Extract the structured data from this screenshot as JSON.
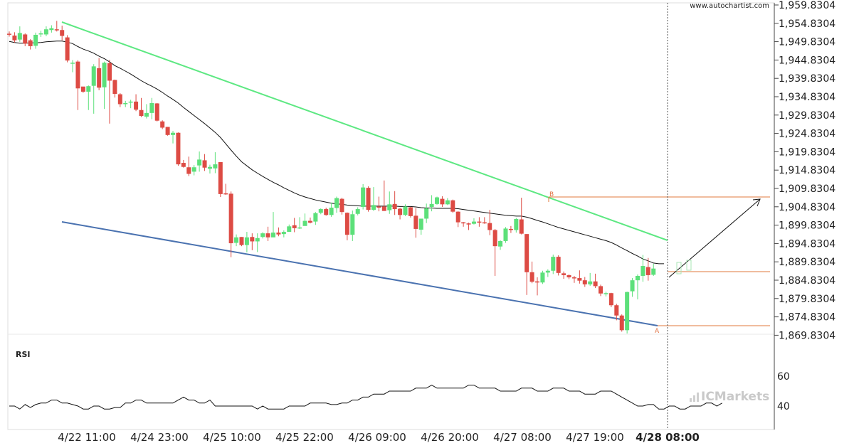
{
  "watermark": "www.autochartist.com",
  "brand": "ICMarkets",
  "rsi_label": "RSI",
  "chart_data": {
    "type": "candlestick",
    "y_ticks": [
      "1,959.8304",
      "1,954.8304",
      "1,949.8304",
      "1,944.8304",
      "1,939.8304",
      "1,934.8304",
      "1,929.8304",
      "1,924.8304",
      "1,919.8304",
      "1,914.8304",
      "1,909.8304",
      "1,904.8304",
      "1,899.8304",
      "1,894.8304",
      "1,889.8304",
      "1,884.8304",
      "1,879.8304",
      "1,874.8304",
      "1,869.8304"
    ],
    "x_ticks": [
      "4/22 11:00",
      "4/24 23:00",
      "4/25 10:00",
      "4/25 22:00",
      "4/26 09:00",
      "4/26 20:00",
      "4/27 08:00",
      "4/27 19:00",
      "4/28 08:00"
    ],
    "x_tick_highlight": "4/28 08:00",
    "ylim": [
      1868.0,
      1960.5
    ],
    "rsi": {
      "ticks": [
        "60",
        "40"
      ],
      "values": [
        40,
        40,
        38,
        41,
        39,
        41,
        42,
        42,
        44,
        44,
        42,
        42,
        41,
        40,
        38,
        38,
        40,
        40,
        38,
        38,
        39,
        39,
        42,
        42,
        44,
        44,
        42,
        42,
        42,
        42,
        42,
        42,
        44,
        46,
        44,
        44,
        42,
        42,
        44,
        40,
        40,
        40,
        40,
        40,
        40,
        40,
        40,
        38,
        40,
        38,
        38,
        38,
        38,
        40,
        40,
        40,
        40,
        42,
        42,
        42,
        42,
        41,
        41,
        42,
        42,
        44,
        44,
        46,
        46,
        48,
        48,
        48,
        50,
        50,
        50,
        50,
        50,
        52,
        52,
        52,
        54,
        52,
        52,
        52,
        52,
        52,
        52,
        54,
        54,
        52,
        52,
        52,
        52,
        50,
        50,
        50,
        50,
        52,
        52,
        52,
        50,
        50,
        50,
        52,
        52,
        52,
        50,
        50,
        50,
        48,
        48,
        48,
        50,
        50,
        50,
        48,
        46,
        44,
        42,
        40,
        40,
        41,
        41,
        38,
        38,
        40,
        40,
        38,
        38,
        40,
        40,
        40,
        42,
        42,
        40,
        42
      ]
    },
    "candles": [
      [
        1952.0,
        1951.8,
        1952.6,
        1951.2
      ],
      [
        1951.5,
        1950.2,
        1952.4,
        1949.6
      ],
      [
        1950.4,
        1952.2,
        1954.0,
        1949.8
      ],
      [
        1951.8,
        1949.3,
        1952.1,
        1948.6
      ],
      [
        1950.2,
        1948.6,
        1950.5,
        1947.7
      ],
      [
        1948.7,
        1951.7,
        1952.3,
        1947.9
      ],
      [
        1951.8,
        1952.1,
        1952.8,
        1951.1
      ],
      [
        1951.8,
        1953.2,
        1954.0,
        1951.3
      ],
      [
        1953.0,
        1953.5,
        1954.3,
        1952.3
      ],
      [
        1953.2,
        1953.1,
        1955.5,
        1952.6
      ],
      [
        1953.0,
        1951.4,
        1954.2,
        1950.2
      ],
      [
        1951.0,
        1944.7,
        1951.6,
        1944.2
      ],
      [
        1944.0,
        1944.1,
        1944.8,
        1941.5
      ],
      [
        1944.4,
        1937.1,
        1944.8,
        1931.2
      ],
      [
        1937.6,
        1936.2,
        1936.8,
        1935.9
      ],
      [
        1936.2,
        1937.7,
        1937.9,
        1931.2
      ],
      [
        1937.8,
        1943.1,
        1943.7,
        1930.2
      ],
      [
        1942.6,
        1937.3,
        1945.4,
        1936.6
      ],
      [
        1937.4,
        1944.1,
        1944.4,
        1931.5
      ],
      [
        1944.0,
        1939.2,
        1944.9,
        1927.5
      ],
      [
        1939.4,
        1935.6,
        1939.5,
        1934.6
      ],
      [
        1935.5,
        1932.8,
        1935.8,
        1932.0
      ],
      [
        1932.8,
        1933.1,
        1933.7,
        1932.0
      ],
      [
        1933.3,
        1933.5,
        1934.0,
        1931.7
      ],
      [
        1933.5,
        1931.3,
        1935.5,
        1930.9
      ],
      [
        1931.2,
        1929.6,
        1934.5,
        1929.3
      ],
      [
        1929.4,
        1930.4,
        1932.8,
        1928.9
      ],
      [
        1930.4,
        1933.1,
        1934.5,
        1928.7
      ],
      [
        1933.0,
        1928.3,
        1933.1,
        1928.1
      ],
      [
        1928.1,
        1926.4,
        1928.4,
        1926.0
      ],
      [
        1926.6,
        1924.4,
        1926.6,
        1924.2
      ],
      [
        1924.4,
        1925.0,
        1925.5,
        1922.1
      ],
      [
        1925.0,
        1916.4,
        1925.1,
        1916.0
      ],
      [
        1916.8,
        1915.7,
        1917.6,
        1915.5
      ],
      [
        1915.6,
        1913.8,
        1918.5,
        1913.2
      ],
      [
        1914.4,
        1915.6,
        1916.2,
        1913.4
      ],
      [
        1916.1,
        1917.7,
        1919.9,
        1914.4
      ],
      [
        1917.5,
        1915.5,
        1919.2,
        1914.6
      ],
      [
        1915.2,
        1915.7,
        1916.3,
        1913.9
      ],
      [
        1915.3,
        1916.4,
        1919.7,
        1914.0
      ],
      [
        1917.0,
        1908.3,
        1917.0,
        1907.5
      ],
      [
        1908.5,
        1908.4,
        1911.1,
        1908.1
      ],
      [
        1908.4,
        1894.9,
        1909.0,
        1891.1
      ],
      [
        1895.0,
        1896.5,
        1897.3,
        1894.1
      ],
      [
        1896.6,
        1894.4,
        1896.6,
        1894.1
      ],
      [
        1894.4,
        1896.5,
        1898.0,
        1892.4
      ],
      [
        1896.6,
        1895.4,
        1897.6,
        1893.0
      ],
      [
        1895.4,
        1896.3,
        1897.6,
        1892.5
      ],
      [
        1896.6,
        1897.6,
        1897.9,
        1896.2
      ],
      [
        1897.6,
        1896.5,
        1899.4,
        1895.5
      ],
      [
        1896.5,
        1897.8,
        1903.4,
        1897.3
      ],
      [
        1897.8,
        1897.3,
        1899.2,
        1896.8
      ],
      [
        1897.4,
        1898.0,
        1898.4,
        1896.5
      ],
      [
        1898.0,
        1899.5,
        1900.0,
        1898.0
      ],
      [
        1899.8,
        1899.0,
        1901.8,
        1897.9
      ],
      [
        1899.0,
        1899.2,
        1902.0,
        1898.8
      ],
      [
        1899.6,
        1901.0,
        1903.0,
        1900.0
      ],
      [
        1901.0,
        1900.5,
        1901.9,
        1900.3
      ],
      [
        1900.8,
        1903.1,
        1903.4,
        1899.9
      ],
      [
        1903.2,
        1904.2,
        1904.4,
        1902.8
      ],
      [
        1904.2,
        1902.6,
        1904.6,
        1902.4
      ],
      [
        1902.6,
        1904.6,
        1906.0,
        1902.1
      ],
      [
        1904.5,
        1907.2,
        1907.6,
        1903.2
      ],
      [
        1907.0,
        1903.4,
        1907.3,
        1902.7
      ],
      [
        1903.2,
        1897.2,
        1903.3,
        1895.7
      ],
      [
        1897.2,
        1902.8,
        1903.8,
        1895.5
      ],
      [
        1902.9,
        1904.2,
        1904.7,
        1902.5
      ],
      [
        1904.8,
        1910.1,
        1911.0,
        1904.1
      ],
      [
        1910.0,
        1904.0,
        1910.4,
        1903.5
      ],
      [
        1904.0,
        1905.3,
        1910.2,
        1903.7
      ],
      [
        1904.9,
        1904.6,
        1907.6,
        1903.6
      ],
      [
        1904.9,
        1903.7,
        1912.0,
        1903.7
      ],
      [
        1903.9,
        1905.5,
        1909.0,
        1902.9
      ],
      [
        1905.6,
        1904.2,
        1909.1,
        1902.6
      ],
      [
        1904.3,
        1902.6,
        1904.6,
        1901.4
      ],
      [
        1902.6,
        1904.9,
        1905.5,
        1902.3
      ],
      [
        1904.7,
        1902.3,
        1904.8,
        1901.9
      ],
      [
        1902.4,
        1898.8,
        1904.5,
        1896.4
      ],
      [
        1898.6,
        1901.6,
        1901.6,
        1897.2
      ],
      [
        1901.6,
        1904.4,
        1905.7,
        1900.4
      ],
      [
        1904.8,
        1905.6,
        1908.0,
        1903.6
      ],
      [
        1905.6,
        1907.4,
        1907.6,
        1905.4
      ],
      [
        1907.0,
        1905.5,
        1907.7,
        1904.8
      ],
      [
        1905.5,
        1906.6,
        1907.2,
        1905.3
      ],
      [
        1906.6,
        1903.5,
        1906.8,
        1903.2
      ],
      [
        1903.5,
        1900.6,
        1903.6,
        1899.3
      ],
      [
        1900.6,
        1900.4,
        1900.7,
        1899.4
      ],
      [
        1900.3,
        1900.1,
        1900.5,
        1898.5
      ],
      [
        1900.2,
        1900.8,
        1901.7,
        1900.0
      ],
      [
        1900.8,
        1900.6,
        1902.0,
        1899.4
      ],
      [
        1900.6,
        1900.4,
        1902.0,
        1900.2
      ],
      [
        1900.4,
        1898.5,
        1904.0,
        1897.1
      ],
      [
        1898.5,
        1894.1,
        1898.8,
        1886.0
      ],
      [
        1894.0,
        1895.5,
        1895.7,
        1893.1
      ],
      [
        1895.5,
        1898.9,
        1899.3,
        1895.0
      ],
      [
        1898.8,
        1898.6,
        1899.6,
        1897.7
      ],
      [
        1898.5,
        1901.5,
        1901.8,
        1897.8
      ],
      [
        1901.4,
        1897.5,
        1907.3,
        1897.3
      ],
      [
        1897.4,
        1887.0,
        1897.4,
        1880.8
      ],
      [
        1887.0,
        1884.4,
        1889.9,
        1884.0
      ],
      [
        1884.5,
        1884.2,
        1885.6,
        1880.7
      ],
      [
        1884.2,
        1886.9,
        1887.4,
        1883.8
      ],
      [
        1886.9,
        1887.4,
        1887.8,
        1885.7
      ],
      [
        1887.4,
        1891.2,
        1891.8,
        1886.5
      ],
      [
        1891.2,
        1886.8,
        1891.6,
        1886.1
      ],
      [
        1886.7,
        1886.2,
        1887.2,
        1885.2
      ],
      [
        1886.2,
        1885.6,
        1886.4,
        1885.1
      ],
      [
        1885.6,
        1885.4,
        1886.0,
        1884.1
      ],
      [
        1885.4,
        1884.7,
        1887.5,
        1883.9
      ],
      [
        1884.8,
        1883.7,
        1885.7,
        1883.0
      ],
      [
        1883.7,
        1884.5,
        1886.8,
        1883.3
      ],
      [
        1884.5,
        1883.2,
        1886.6,
        1882.7
      ],
      [
        1883.2,
        1881.2,
        1883.6,
        1880.5
      ],
      [
        1881.2,
        1881.3,
        1881.7,
        1880.4
      ],
      [
        1881.3,
        1878.0,
        1881.4,
        1877.5
      ],
      [
        1878.0,
        1875.2,
        1878.4,
        1873.9
      ],
      [
        1875.2,
        1871.2,
        1875.5,
        1870.8
      ],
      [
        1871.2,
        1881.6,
        1881.7,
        1870.3
      ],
      [
        1881.8,
        1884.8,
        1885.4,
        1880.3
      ],
      [
        1884.8,
        1886.0,
        1886.4,
        1879.6
      ],
      [
        1886.0,
        1888.7,
        1891.7,
        1884.4
      ],
      [
        1888.4,
        1886.2,
        1890.9,
        1884.7
      ],
      [
        1886.3,
        1888.0,
        1889.3,
        1886.0
      ]
    ],
    "ma": [
      1949.9,
      1949.6,
      1949.4,
      1949.4,
      1949.5,
      1949.5,
      1949.6,
      1949.8,
      1949.9,
      1950.0,
      1950.0,
      1949.7,
      1949.3,
      1948.5,
      1947.8,
      1947.3,
      1946.7,
      1945.9,
      1945.2,
      1944.3,
      1943.3,
      1942.6,
      1941.8,
      1941.0,
      1940.1,
      1939.2,
      1938.4,
      1937.7,
      1936.9,
      1936.0,
      1935.0,
      1934.1,
      1933.1,
      1931.9,
      1930.8,
      1929.7,
      1928.6,
      1927.5,
      1926.3,
      1925.1,
      1923.7,
      1922.0,
      1920.3,
      1918.6,
      1917.1,
      1916.0,
      1914.9,
      1914.0,
      1913.1,
      1912.3,
      1911.5,
      1910.8,
      1910.0,
      1909.3,
      1908.6,
      1908.0,
      1907.5,
      1907.1,
      1906.7,
      1906.4,
      1906.1,
      1905.8,
      1905.6,
      1905.5,
      1905.3,
      1905.2,
      1905.1,
      1905.0,
      1905.0,
      1905.0,
      1905.0,
      1905.0,
      1905.0,
      1905.0,
      1904.9,
      1904.9,
      1904.9,
      1904.8,
      1904.6,
      1904.5,
      1904.5,
      1904.4,
      1904.4,
      1904.4,
      1904.4,
      1904.3,
      1904.1,
      1903.9,
      1903.7,
      1903.5,
      1903.3,
      1903.1,
      1902.9,
      1902.7,
      1902.5,
      1902.4,
      1902.3,
      1902.3,
      1902.0,
      1901.6,
      1901.1,
      1900.7,
      1900.2,
      1899.7,
      1899.2,
      1898.8,
      1898.4,
      1898.0,
      1897.6,
      1897.2,
      1896.8,
      1896.4,
      1896.0,
      1895.6,
      1895.1,
      1894.4,
      1893.6,
      1892.9,
      1892.1,
      1891.4,
      1890.6,
      1890.1,
      1889.5,
      1889.3,
      1889.3
    ]
  }
}
